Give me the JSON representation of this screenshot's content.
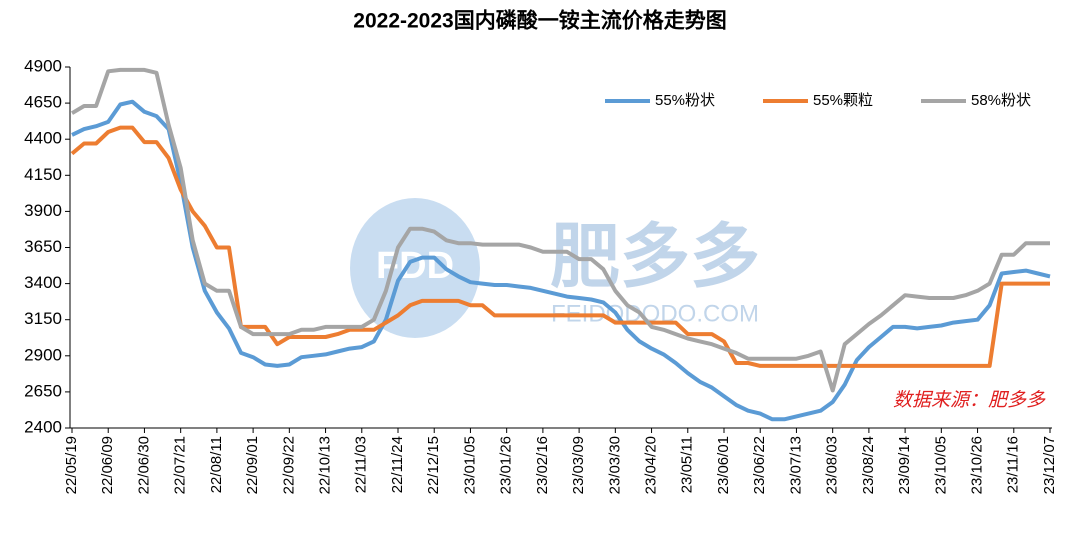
{
  "chart_data": {
    "type": "line",
    "title": "2022-2023国内磷酸一铵主流价格走势图",
    "annotation": "数据来源：肥多多",
    "watermark": {
      "logo": "FDD",
      "name": "肥多多",
      "url": "FEIDODODO.COM"
    },
    "legend_position": "top-right",
    "ylim": [
      2400,
      4900
    ],
    "yticks": [
      2400,
      2650,
      2900,
      3150,
      3400,
      3650,
      3900,
      4150,
      4400,
      4650,
      4900
    ],
    "categories": [
      "22/05/19",
      null,
      null,
      "22/06/09",
      null,
      null,
      "22/06/30",
      null,
      null,
      "22/07/21",
      null,
      null,
      "22/08/11",
      null,
      null,
      "22/09/01",
      null,
      null,
      "22/09/22",
      null,
      null,
      "22/10/13",
      null,
      null,
      "22/11/03",
      null,
      null,
      "22/11/24",
      null,
      null,
      "22/12/15",
      null,
      null,
      "23/01/05",
      null,
      null,
      "23/01/26",
      null,
      null,
      "23/02/16",
      null,
      null,
      "23/03/09",
      null,
      null,
      "23/03/30",
      null,
      null,
      "23/04/20",
      null,
      null,
      "23/05/11",
      null,
      null,
      "23/06/01",
      null,
      null,
      "23/06/22",
      null,
      null,
      "23/07/13",
      null,
      null,
      "23/08/03",
      null,
      null,
      "23/08/24",
      null,
      null,
      "23/09/14",
      null,
      null,
      "23/10/05",
      null,
      null,
      "23/10/26",
      null,
      null,
      "23/11/16",
      null,
      null,
      "23/12/07"
    ],
    "series": [
      {
        "name": "55%粉状",
        "color": "#5b9bd5",
        "values": [
          4430,
          4470,
          4490,
          4520,
          4640,
          4660,
          4590,
          4560,
          4470,
          4100,
          3650,
          3350,
          3200,
          3090,
          2920,
          2890,
          2840,
          2830,
          2840,
          2890,
          2900,
          2910,
          2930,
          2950,
          2960,
          3000,
          3150,
          3420,
          3550,
          3580,
          3580,
          3500,
          3450,
          3410,
          3400,
          3390,
          3390,
          3380,
          3370,
          3350,
          3330,
          3310,
          3300,
          3290,
          3270,
          3200,
          3080,
          3000,
          2950,
          2910,
          2850,
          2780,
          2720,
          2680,
          2620,
          2560,
          2520,
          2500,
          2460,
          2460,
          2480,
          2500,
          2520,
          2580,
          2700,
          2870,
          2960,
          3030,
          3100,
          3100,
          3090,
          3100,
          3110,
          3130,
          3140,
          3150,
          3250,
          3470,
          3480,
          3490,
          3470,
          3450
        ]
      },
      {
        "name": "55%颗粒",
        "color": "#ed7d31",
        "values": [
          4300,
          4370,
          4370,
          4450,
          4480,
          4480,
          4380,
          4380,
          4270,
          4050,
          3900,
          3800,
          3650,
          3650,
          3100,
          3100,
          3100,
          2980,
          3030,
          3030,
          3030,
          3030,
          3050,
          3080,
          3080,
          3080,
          3130,
          3180,
          3250,
          3280,
          3280,
          3280,
          3280,
          3250,
          3250,
          3180,
          3180,
          3180,
          3180,
          3180,
          3180,
          3180,
          3180,
          3180,
          3180,
          3130,
          3130,
          3130,
          3130,
          3130,
          3130,
          3050,
          3050,
          3050,
          3000,
          2850,
          2850,
          2830,
          2830,
          2830,
          2830,
          2830,
          2830,
          2830,
          2830,
          2830,
          2830,
          2830,
          2830,
          2830,
          2830,
          2830,
          2830,
          2830,
          2830,
          2830,
          2830,
          3400,
          3400,
          3400,
          3400,
          3400
        ]
      },
      {
        "name": "58%粉状",
        "color": "#a5a5a5",
        "values": [
          4580,
          4630,
          4630,
          4870,
          4880,
          4880,
          4880,
          4860,
          4500,
          4200,
          3700,
          3400,
          3350,
          3350,
          3100,
          3050,
          3050,
          3050,
          3050,
          3080,
          3080,
          3100,
          3100,
          3100,
          3100,
          3150,
          3350,
          3650,
          3780,
          3780,
          3760,
          3700,
          3680,
          3680,
          3670,
          3670,
          3670,
          3670,
          3650,
          3620,
          3620,
          3620,
          3570,
          3570,
          3500,
          3350,
          3250,
          3200,
          3100,
          3080,
          3050,
          3020,
          3000,
          2980,
          2950,
          2920,
          2880,
          2880,
          2880,
          2880,
          2880,
          2900,
          2930,
          2660,
          2980,
          3050,
          3120,
          3180,
          3250,
          3320,
          3310,
          3300,
          3300,
          3300,
          3320,
          3350,
          3400,
          3600,
          3600,
          3680,
          3680,
          3680
        ]
      }
    ]
  }
}
